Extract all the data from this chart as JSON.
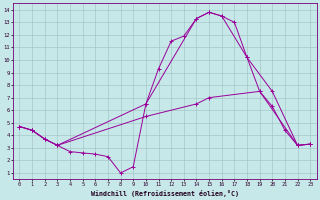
{
  "xlabel": "Windchill (Refroidissement éolien,°C)",
  "bg_color": "#c6e8e8",
  "line_color": "#990099",
  "grid_color": "#a0c0c0",
  "xlim": [
    -0.5,
    23.5
  ],
  "ylim": [
    0.5,
    14.5
  ],
  "xticks": [
    0,
    1,
    2,
    3,
    4,
    5,
    6,
    7,
    8,
    9,
    10,
    11,
    12,
    13,
    14,
    15,
    16,
    17,
    18,
    19,
    20,
    21,
    22,
    23
  ],
  "yticks": [
    1,
    2,
    3,
    4,
    5,
    6,
    7,
    8,
    9,
    10,
    11,
    12,
    13,
    14
  ],
  "line1_x": [
    0,
    1,
    2,
    3,
    4,
    5,
    6,
    7,
    8,
    9,
    10,
    11,
    12,
    13,
    14,
    15,
    16,
    17,
    18,
    19,
    20,
    21,
    22,
    23
  ],
  "line1_y": [
    4.7,
    4.4,
    3.7,
    3.2,
    2.7,
    2.6,
    2.5,
    2.3,
    1.0,
    1.5,
    6.5,
    9.3,
    11.5,
    11.9,
    13.3,
    13.8,
    13.5,
    13.0,
    10.2,
    7.5,
    6.3,
    4.4,
    3.2,
    3.3
  ],
  "line2_x": [
    0,
    1,
    2,
    3,
    10,
    14,
    15,
    16,
    18,
    20,
    22,
    23
  ],
  "line2_y": [
    4.7,
    4.4,
    3.7,
    3.2,
    6.5,
    13.3,
    13.8,
    13.5,
    10.2,
    7.5,
    3.2,
    3.3
  ],
  "line3_x": [
    0,
    1,
    2,
    3,
    10,
    14,
    15,
    19,
    22,
    23
  ],
  "line3_y": [
    4.7,
    4.4,
    3.7,
    3.2,
    5.5,
    6.5,
    7.0,
    7.5,
    3.2,
    3.3
  ]
}
